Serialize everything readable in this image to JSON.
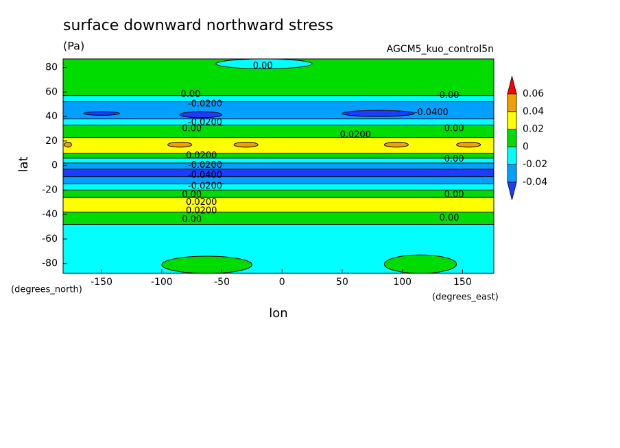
{
  "chart_data": {
    "type": "contour",
    "title": "surface downward northward stress",
    "subtitle": "(Pa)",
    "source_label": "AGCM5_kuo_control5n",
    "x_label": "lon",
    "y_label": "lat",
    "x_units": "(degrees_east)",
    "y_units": "(degrees_north)",
    "xlim": [
      -182,
      176
    ],
    "ylim": [
      -88,
      87
    ],
    "xticks": [
      -150,
      -100,
      -50,
      0,
      50,
      100,
      150
    ],
    "yticks": [
      -80,
      -60,
      -40,
      -20,
      0,
      20,
      40,
      60,
      80
    ],
    "levels": [
      -0.04,
      -0.02,
      0,
      0.02,
      0.04,
      0.06
    ],
    "colors": [
      "#1e3cff",
      "#00a0ff",
      "#00ffff",
      "#00dc00",
      "#ffff00",
      "#f0a000",
      "#ff0000"
    ],
    "lat_edges": [
      87,
      57,
      52,
      38,
      33,
      23,
      10,
      6,
      2,
      -3,
      -9,
      -15,
      -20,
      -26,
      -38,
      -48,
      -88
    ],
    "zonal_values": [
      0.005,
      -0.01,
      -0.03,
      -0.01,
      0.01,
      0.03,
      0.01,
      -0.01,
      -0.03,
      -0.045,
      -0.03,
      -0.01,
      0.01,
      0.025,
      0.01,
      -0.01
    ],
    "patches": [
      {
        "lon": [
          -55,
          25
        ],
        "lat": [
          79,
          87
        ],
        "value": -0.005
      },
      {
        "lon": [
          -85,
          -50
        ],
        "lat": [
          39,
          44
        ],
        "value": -0.045
      },
      {
        "lon": [
          -165,
          -135
        ],
        "lat": [
          41,
          44
        ],
        "value": -0.045
      },
      {
        "lon": [
          50,
          110
        ],
        "lat": [
          40,
          45
        ],
        "value": -0.045
      },
      {
        "lon": [
          -181,
          -175
        ],
        "lat": [
          15,
          19
        ],
        "value": 0.045
      },
      {
        "lon": [
          -95,
          -75
        ],
        "lat": [
          15,
          19
        ],
        "value": 0.045
      },
      {
        "lon": [
          -40,
          -20
        ],
        "lat": [
          15,
          19
        ],
        "value": 0.045
      },
      {
        "lon": [
          85,
          105
        ],
        "lat": [
          15,
          19
        ],
        "value": 0.045
      },
      {
        "lon": [
          145,
          165
        ],
        "lat": [
          15,
          19
        ],
        "value": 0.045
      },
      {
        "lon": [
          -100,
          -25
        ],
        "lat": [
          -88,
          -74
        ],
        "value": 0.01
      },
      {
        "lon": [
          85,
          145
        ],
        "lat": [
          -88,
          -73
        ],
        "value": 0.01
      }
    ],
    "contour_labels": [
      {
        "text": "0.00",
        "lon": -16,
        "lat": 81
      },
      {
        "text": "0.00",
        "lon": -76,
        "lat": 58
      },
      {
        "text": "-0.0200",
        "lon": -64,
        "lat": 50
      },
      {
        "text": "-0.0200",
        "lon": -64,
        "lat": 35
      },
      {
        "text": "0.00",
        "lon": -75,
        "lat": 30
      },
      {
        "text": "0.00",
        "lon": 139,
        "lat": 57
      },
      {
        "text": "-0.0400",
        "lon": 124,
        "lat": 43
      },
      {
        "text": "0.00",
        "lon": 143,
        "lat": 30
      },
      {
        "text": "0.0200",
        "lon": 61,
        "lat": 25
      },
      {
        "text": "0.0200",
        "lon": -67,
        "lat": 8
      },
      {
        "text": "-0.0200",
        "lon": -64,
        "lat": 0
      },
      {
        "text": "-0.0400",
        "lon": -64,
        "lat": -8
      },
      {
        "text": "-0.0200",
        "lon": -64,
        "lat": -17
      },
      {
        "text": "0.00",
        "lon": -75,
        "lat": -24
      },
      {
        "text": "0.0200",
        "lon": -67,
        "lat": -30
      },
      {
        "text": "0.0200",
        "lon": -67,
        "lat": -37
      },
      {
        "text": "0.00",
        "lon": -75,
        "lat": -44
      },
      {
        "text": "0.00",
        "lon": 143,
        "lat": 5
      },
      {
        "text": "0.00",
        "lon": 143,
        "lat": -24
      },
      {
        "text": "0.00",
        "lon": 139,
        "lat": -43
      }
    ]
  }
}
